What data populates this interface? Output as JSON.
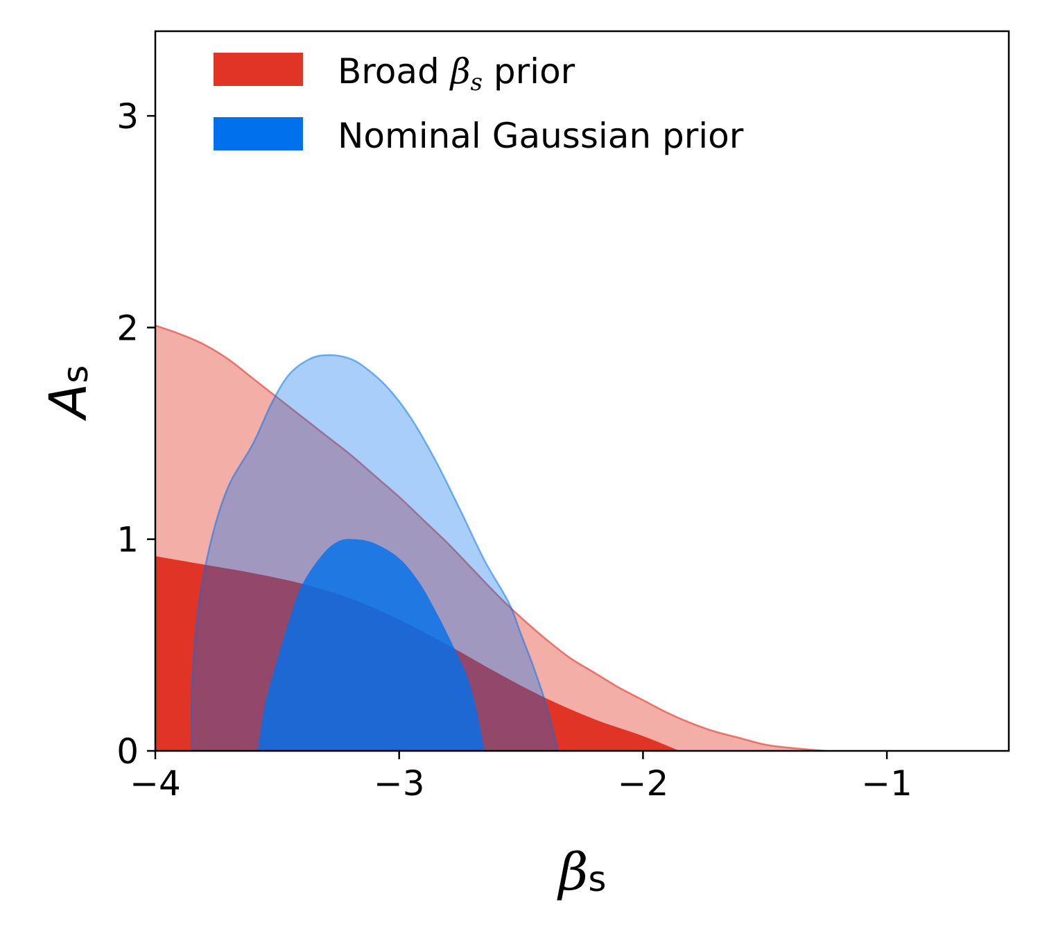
{
  "chart_data": {
    "type": "contour",
    "xlabel": "β",
    "xlabel_sub": "s",
    "ylabel": "A",
    "ylabel_sub": "s",
    "xlim": [
      -4.0,
      -0.5
    ],
    "ylim": [
      0,
      3.4
    ],
    "xticks": [
      -4,
      -3,
      -2,
      -1
    ],
    "xtick_labels": [
      "−4",
      "−3",
      "−2",
      "−1"
    ],
    "yticks": [
      0,
      1,
      2,
      3
    ],
    "ytick_labels": [
      "0",
      "1",
      "2",
      "3"
    ],
    "grid": false,
    "legend_position": "top-left",
    "series": [
      {
        "name": "Broad β prior",
        "name_main": "Broad ",
        "name_beta": "β",
        "name_sub": "s",
        "name_tail": " prior",
        "color": "#e03426",
        "contours": [
          {
            "level": "outer",
            "points": [
              [
                -4.0,
                2.01
              ],
              [
                -3.9,
                1.97
              ],
              [
                -3.8,
                1.92
              ],
              [
                -3.7,
                1.85
              ],
              [
                -3.6,
                1.76
              ],
              [
                -3.5,
                1.67
              ],
              [
                -3.4,
                1.58
              ],
              [
                -3.3,
                1.49
              ],
              [
                -3.2,
                1.4
              ],
              [
                -3.1,
                1.3
              ],
              [
                -3.0,
                1.2
              ],
              [
                -2.9,
                1.09
              ],
              [
                -2.8,
                0.98
              ],
              [
                -2.7,
                0.86
              ],
              [
                -2.6,
                0.74
              ],
              [
                -2.5,
                0.63
              ],
              [
                -2.4,
                0.53
              ],
              [
                -2.3,
                0.44
              ],
              [
                -2.2,
                0.37
              ],
              [
                -2.1,
                0.3
              ],
              [
                -2.0,
                0.24
              ],
              [
                -1.9,
                0.18
              ],
              [
                -1.8,
                0.13
              ],
              [
                -1.7,
                0.09
              ],
              [
                -1.6,
                0.06
              ],
              [
                -1.5,
                0.03
              ],
              [
                -1.4,
                0.015
              ],
              [
                -1.25,
                0.0
              ]
            ]
          },
          {
            "level": "inner",
            "points": [
              [
                -4.0,
                0.92
              ],
              [
                -3.8,
                0.88
              ],
              [
                -3.6,
                0.84
              ],
              [
                -3.4,
                0.79
              ],
              [
                -3.2,
                0.72
              ],
              [
                -3.0,
                0.62
              ],
              [
                -2.8,
                0.5
              ],
              [
                -2.6,
                0.37
              ],
              [
                -2.4,
                0.25
              ],
              [
                -2.2,
                0.15
              ],
              [
                -2.0,
                0.07
              ],
              [
                -1.85,
                0.0
              ]
            ]
          }
        ]
      },
      {
        "name": "Nominal Gaussian prior",
        "color": "#0070ec",
        "contours": [
          {
            "level": "outer",
            "points": [
              [
                -3.85,
                0.0
              ],
              [
                -3.85,
                0.3
              ],
              [
                -3.82,
                0.7
              ],
              [
                -3.77,
                1.0
              ],
              [
                -3.7,
                1.25
              ],
              [
                -3.6,
                1.45
              ],
              [
                -3.52,
                1.65
              ],
              [
                -3.45,
                1.78
              ],
              [
                -3.37,
                1.85
              ],
              [
                -3.3,
                1.87
              ],
              [
                -3.22,
                1.86
              ],
              [
                -3.15,
                1.82
              ],
              [
                -3.05,
                1.72
              ],
              [
                -2.95,
                1.57
              ],
              [
                -2.85,
                1.37
              ],
              [
                -2.75,
                1.14
              ],
              [
                -2.65,
                0.9
              ],
              [
                -2.55,
                0.7
              ],
              [
                -2.5,
                0.55
              ],
              [
                -2.45,
                0.4
              ],
              [
                -2.4,
                0.23
              ],
              [
                -2.37,
                0.1
              ],
              [
                -2.35,
                0.0
              ]
            ]
          },
          {
            "level": "inner",
            "points": [
              [
                -3.58,
                0.0
              ],
              [
                -3.55,
                0.22
              ],
              [
                -3.5,
                0.43
              ],
              [
                -3.45,
                0.62
              ],
              [
                -3.4,
                0.78
              ],
              [
                -3.32,
                0.92
              ],
              [
                -3.25,
                0.99
              ],
              [
                -3.18,
                1.0
              ],
              [
                -3.1,
                0.98
              ],
              [
                -3.0,
                0.91
              ],
              [
                -2.92,
                0.8
              ],
              [
                -2.85,
                0.66
              ],
              [
                -2.78,
                0.5
              ],
              [
                -2.72,
                0.35
              ],
              [
                -2.68,
                0.18
              ],
              [
                -2.65,
                0.0
              ]
            ]
          }
        ]
      }
    ]
  }
}
